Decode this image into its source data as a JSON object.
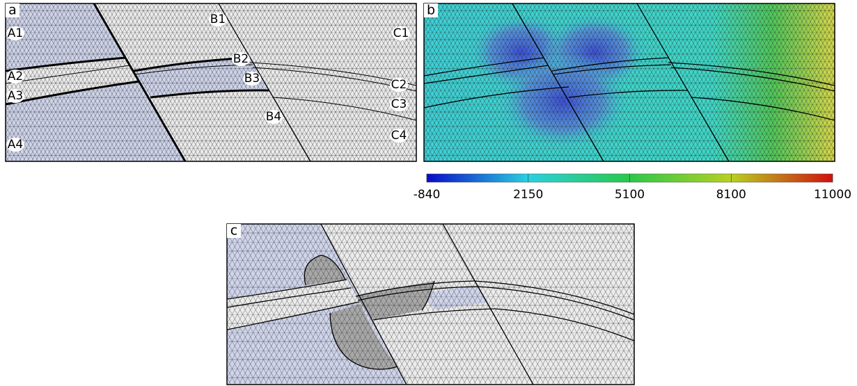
{
  "panels": [
    {
      "letter": "a",
      "region_labels": [
        "A1",
        "A2",
        "A3",
        "A4",
        "B1",
        "B2",
        "B3",
        "B4",
        "C1",
        "C2",
        "C3",
        "C4"
      ]
    },
    {
      "letter": "b"
    },
    {
      "letter": "c"
    }
  ],
  "colorbar": {
    "ticks": [
      -840,
      2150,
      5100,
      8100,
      11000
    ]
  }
}
